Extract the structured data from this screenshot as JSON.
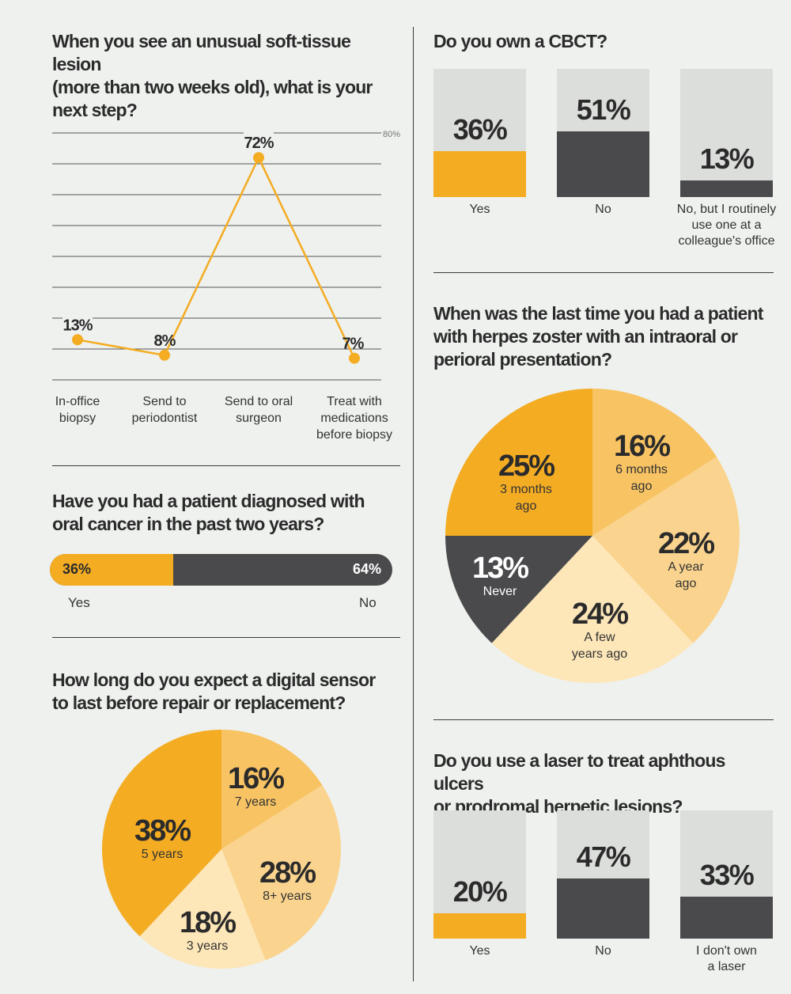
{
  "colors": {
    "dark": "#4a4a4c",
    "gold": "#f4ac23",
    "gold_mid": "#f8c363",
    "gold_light": "#fad48e",
    "cream": "#fde6b8",
    "box_bg": "#dcdedb",
    "line": "#f4ac23",
    "background": "#eef1ee"
  },
  "q1": {
    "title": "When you see an unusual soft-tissue lesion\n(more than two weeks old), what is your\nnext step?",
    "chart_data": {
      "type": "line",
      "categories": [
        "In-office\nbiopsy",
        "Send to\nperiodontist",
        "Send to oral\nsurgeon",
        "Treat with\nmedications\nbefore biopsy"
      ],
      "values": [
        13,
        8,
        72,
        7
      ],
      "value_labels": [
        "13%",
        "8%",
        "72%",
        "7%"
      ],
      "ylim": [
        0,
        80
      ],
      "y_max_label": "80%",
      "grid": true
    }
  },
  "q2": {
    "title": "Have you had a patient diagnosed with\noral cancer in the past two years?",
    "chart_data": {
      "type": "bar",
      "categories": [
        "Yes",
        "No"
      ],
      "values": [
        36,
        64
      ],
      "value_labels": [
        "36%",
        "64%"
      ],
      "stacked": true
    }
  },
  "q3": {
    "title": "How long do you expect a digital sensor\nto last before repair or replacement?",
    "chart_data": {
      "type": "pie",
      "slices": [
        {
          "label": "7 years",
          "value": 16,
          "value_label": "16%",
          "color": "#f8c363"
        },
        {
          "label": "8+ years",
          "value": 28,
          "value_label": "28%",
          "color": "#fad48e"
        },
        {
          "label": "3 years",
          "value": 18,
          "value_label": "18%",
          "color": "#fde6b8"
        },
        {
          "label": "5 years",
          "value": 38,
          "value_label": "38%",
          "color": "#f4ac23"
        }
      ]
    }
  },
  "q4": {
    "title": "Do you own a CBCT?",
    "chart_data": {
      "type": "bar",
      "categories": [
        "Yes",
        "No",
        "No, but I routinely\nuse one at a\ncolleague's office"
      ],
      "values": [
        36,
        51,
        13
      ],
      "value_labels": [
        "36%",
        "51%",
        "13%"
      ],
      "colors": [
        "#f4ac23",
        "#4a4a4c",
        "#4a4a4c"
      ]
    }
  },
  "q5": {
    "title": "When was the last time you had a patient\nwith herpes zoster with an intraoral or\nperioral presentation?",
    "chart_data": {
      "type": "pie",
      "slices": [
        {
          "label": "6 months\nago",
          "value": 16,
          "value_label": "16%",
          "color": "#f8c363"
        },
        {
          "label": "A year\nago",
          "value": 22,
          "value_label": "22%",
          "color": "#fad48e"
        },
        {
          "label": "A few\nyears ago",
          "value": 24,
          "value_label": "24%",
          "color": "#fde6b8"
        },
        {
          "label": "Never",
          "value": 13,
          "value_label": "13%",
          "color": "#4a4a4c"
        },
        {
          "label": "3 months\nago",
          "value": 25,
          "value_label": "25%",
          "color": "#f4ac23"
        }
      ]
    }
  },
  "q6": {
    "title": "Do you use a laser to treat aphthous ulcers\nor prodromal herpetic lesions?",
    "chart_data": {
      "type": "bar",
      "categories": [
        "Yes",
        "No",
        "I don't own\na laser"
      ],
      "values": [
        20,
        47,
        33
      ],
      "value_labels": [
        "20%",
        "47%",
        "33%"
      ],
      "colors": [
        "#f4ac23",
        "#4a4a4c",
        "#4a4a4c"
      ]
    }
  }
}
